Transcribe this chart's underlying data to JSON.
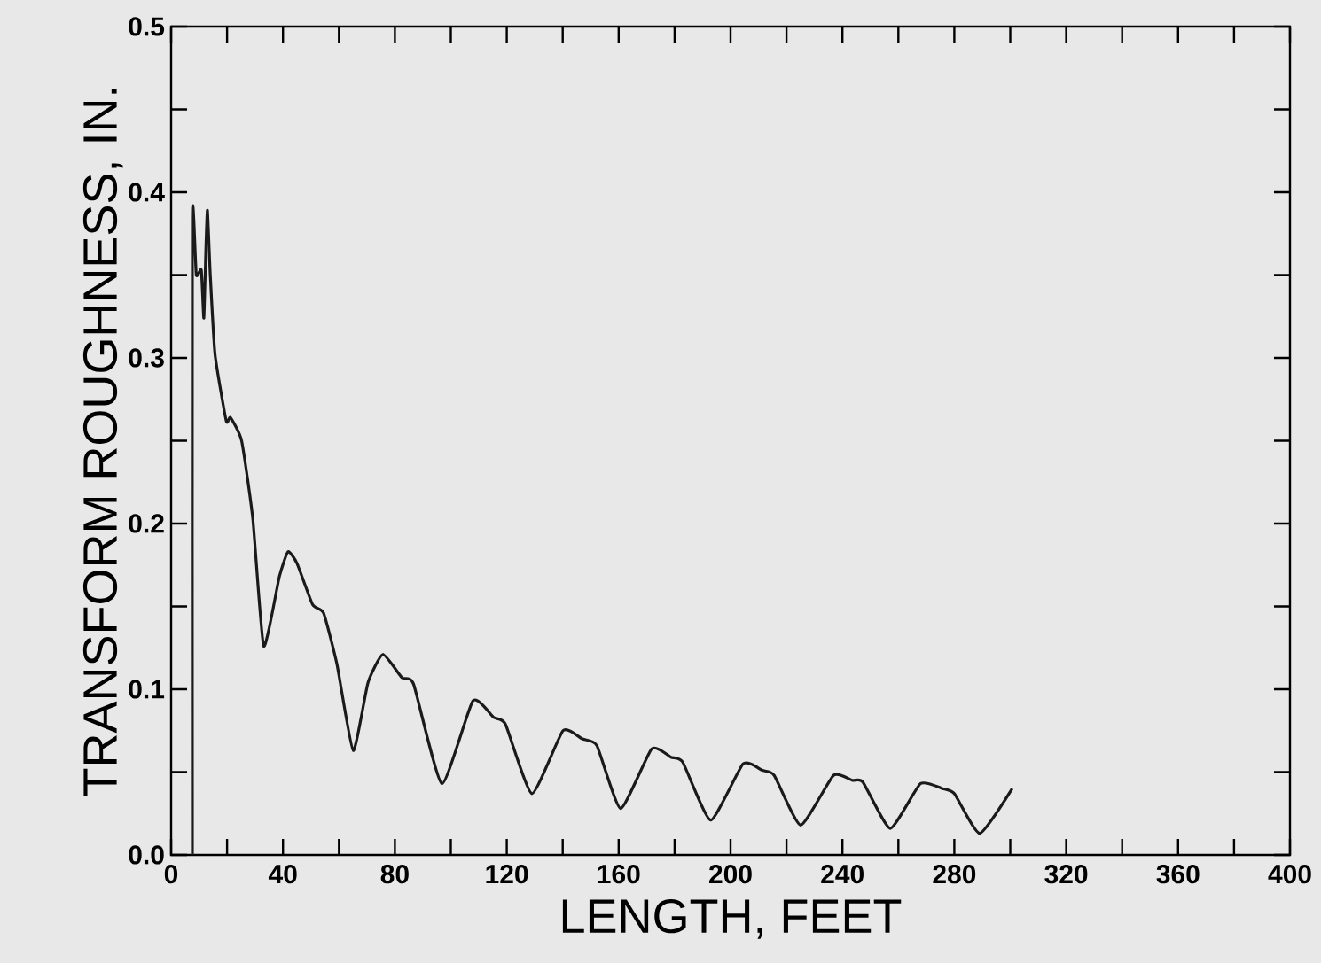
{
  "chart_data": {
    "type": "line",
    "xlabel": "LENGTH,  FEET",
    "ylabel": "TRANSFORM  ROUGHNESS,  IN.",
    "xlim": [
      0,
      400
    ],
    "ylim": [
      0,
      0.5
    ],
    "xticks": [
      0,
      40,
      80,
      120,
      160,
      200,
      240,
      280,
      320,
      360,
      400
    ],
    "yticks": [
      {
        "value": 0,
        "label": "0.0"
      },
      0.1,
      0.2,
      0.3,
      0.4,
      0.5
    ],
    "marker": "none",
    "line_style": "solid",
    "series": [
      {
        "color": "#1a1a1a",
        "x": [
          7.6,
          7.6,
          9,
          10.8,
          11.7,
          12.5,
          13,
          14,
          15.7,
          19.7,
          21.2,
          25.2,
          29.2,
          33.1,
          38.7,
          41.8,
          45,
          50.6,
          54.5,
          59.3,
          65.1,
          70.4,
          75.7,
          82.5,
          86.7,
          96.8,
          107.9,
          115.3,
          119.5,
          129,
          140.1,
          147,
          152.2,
          160.7,
          171.8,
          178.7,
          182.9,
          192.9,
          204.5,
          211.4,
          215.6,
          225.1,
          236.8,
          243.6,
          247.3,
          257.1,
          267.9,
          275.8,
          280,
          289.1,
          300.7
        ],
        "values": [
          0,
          0.384,
          0.35,
          0.353,
          0.324,
          0.37,
          0.389,
          0.35,
          0.302,
          0.262,
          0.264,
          0.25,
          0.203,
          0.126,
          0.168,
          0.183,
          0.176,
          0.151,
          0.146,
          0.115,
          0.063,
          0.104,
          0.121,
          0.107,
          0.103,
          0.043,
          0.093,
          0.083,
          0.079,
          0.037,
          0.075,
          0.07,
          0.066,
          0.028,
          0.064,
          0.059,
          0.056,
          0.021,
          0.055,
          0.051,
          0.048,
          0.018,
          0.048,
          0.045,
          0.044,
          0.016,
          0.043,
          0.04,
          0.037,
          0.013,
          0.04
        ]
      }
    ]
  }
}
